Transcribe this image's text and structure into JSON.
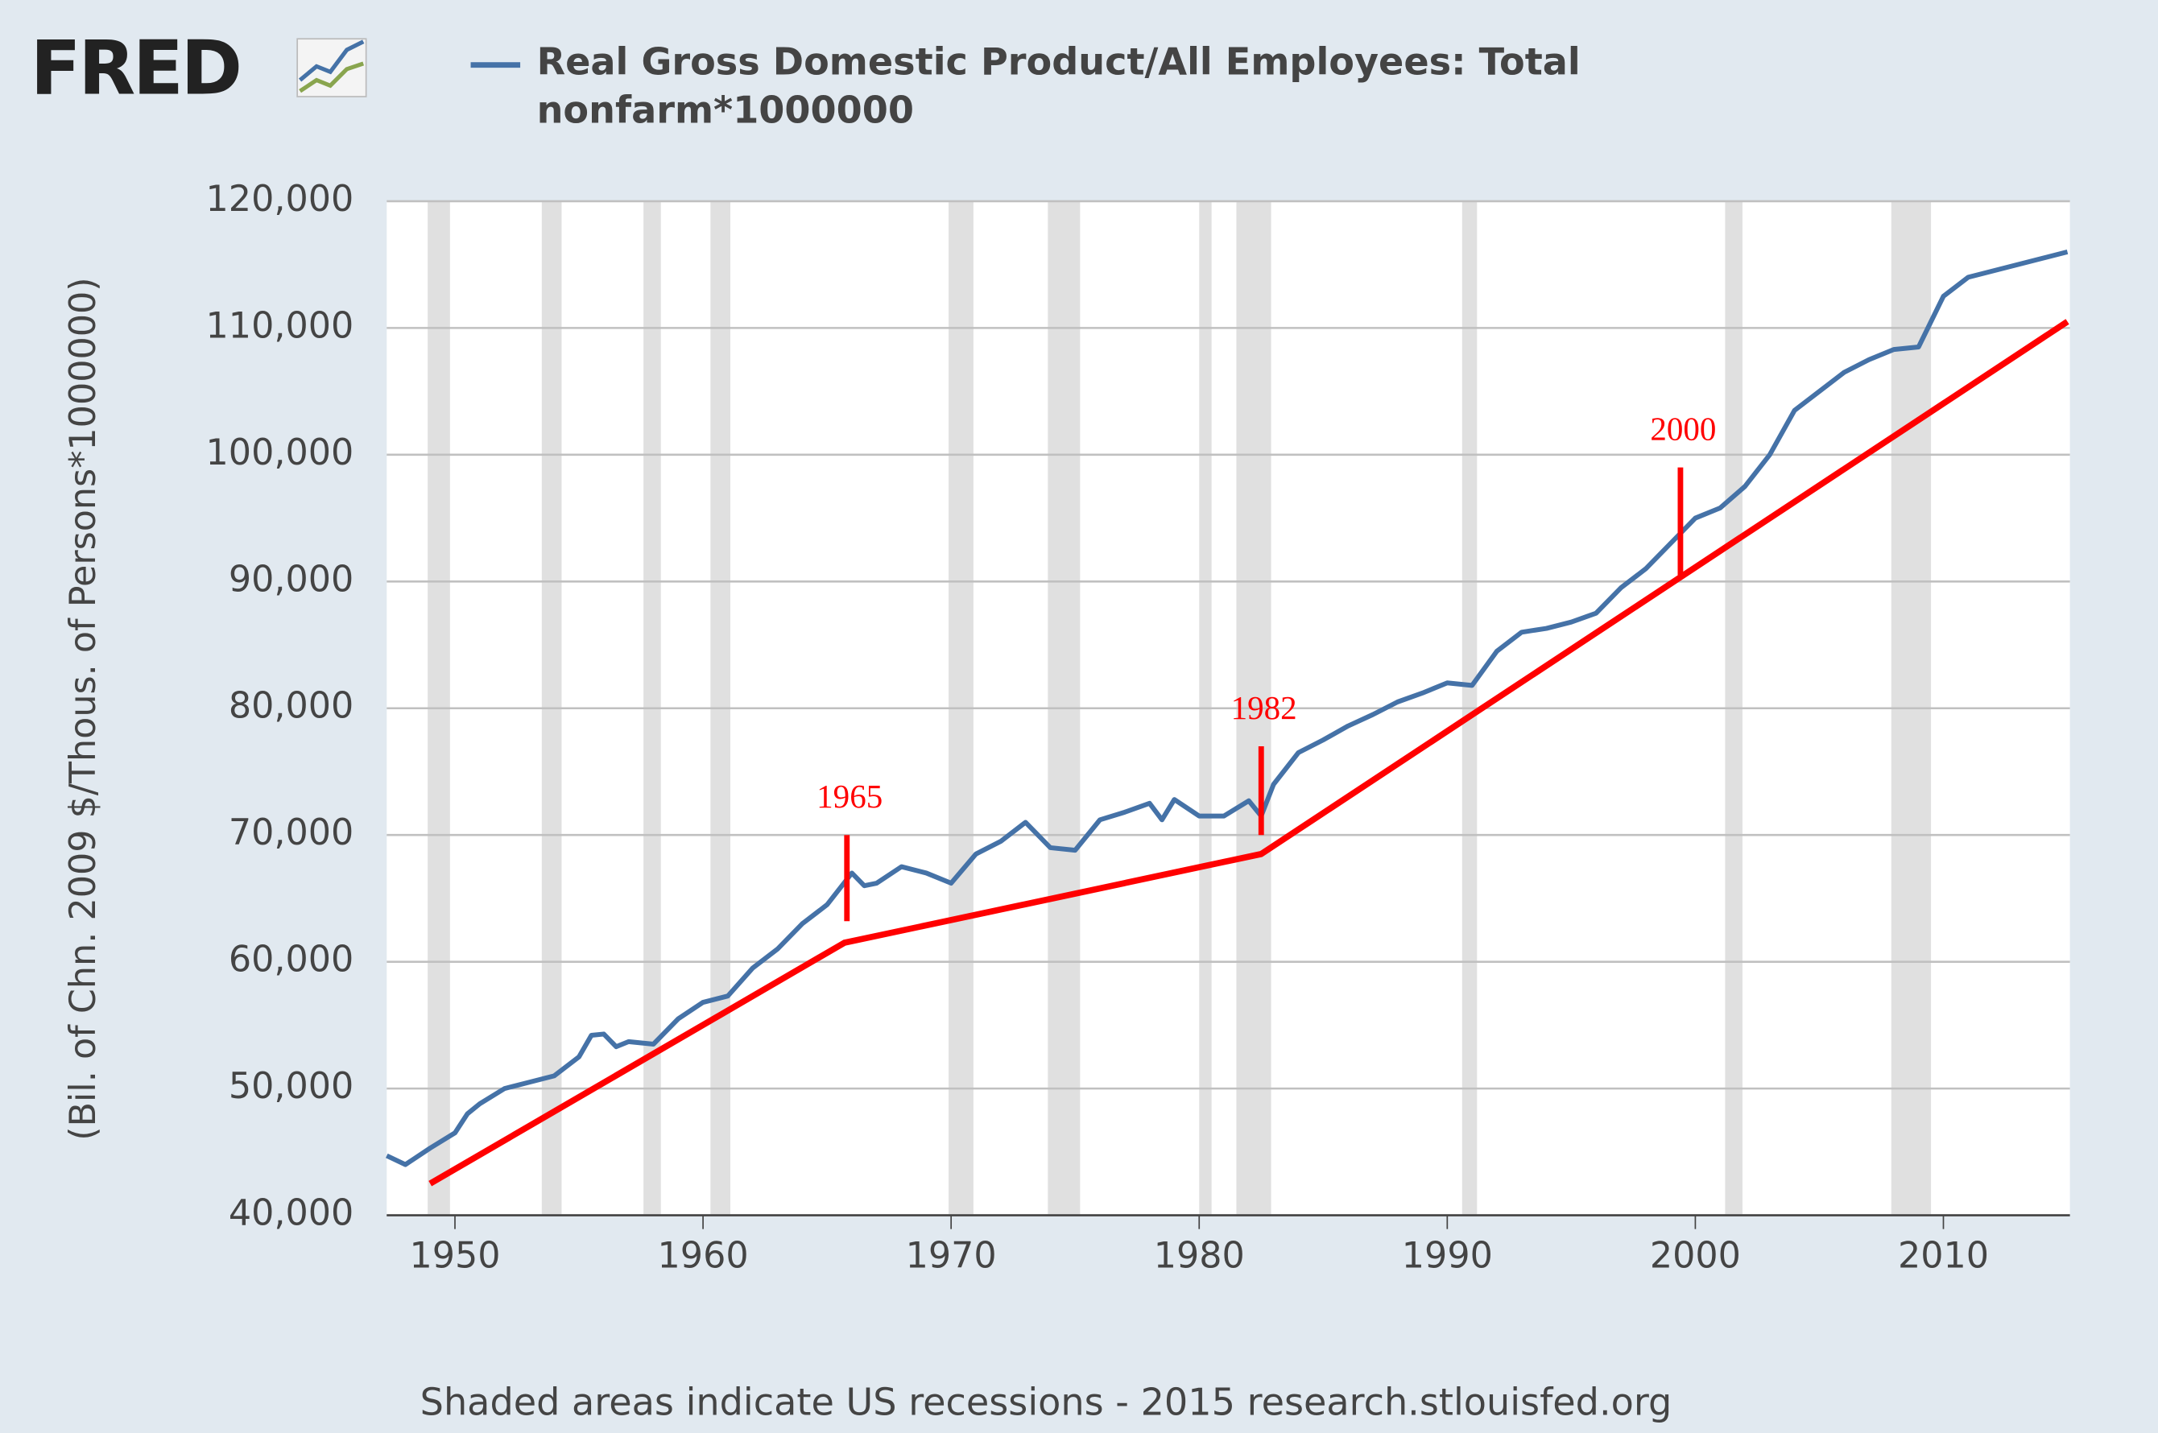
{
  "chart_data": {
    "type": "line",
    "logo": "FRED",
    "title": "Real Gross Domestic Product/All Employees: Total nonfarm*1000000",
    "y_label": "(Bil. of Chn. 2009 $/Thous. of Persons*1000000)",
    "footer": "Shaded areas indicate US recessions - 2015 research.stlouisfed.org",
    "xlim": [
      1947.25,
      2015.1
    ],
    "xticks": [
      1950,
      1960,
      1970,
      1980,
      1990,
      2000,
      2010
    ],
    "ylim": [
      40000,
      120000
    ],
    "yticks": [
      {
        "value": 40000,
        "label": "40,000"
      },
      {
        "value": 50000,
        "label": "50,000"
      },
      {
        "value": 60000,
        "label": "60,000"
      },
      {
        "value": 70000,
        "label": "70,000"
      },
      {
        "value": 80000,
        "label": "80,000"
      },
      {
        "value": 90000,
        "label": "90,000"
      },
      {
        "value": 100000,
        "label": "100,000"
      },
      {
        "value": 110000,
        "label": "110,000"
      },
      {
        "value": 120000,
        "label": "120,000"
      }
    ],
    "grid": true,
    "recessions": [
      [
        1948.9,
        1949.8
      ],
      [
        1953.5,
        1954.3
      ],
      [
        1957.6,
        1958.3
      ],
      [
        1960.3,
        1961.1
      ],
      [
        1969.9,
        1970.9
      ],
      [
        1973.9,
        1975.2
      ],
      [
        1980.0,
        1980.5
      ],
      [
        1981.5,
        1982.9
      ],
      [
        1990.6,
        1991.2
      ],
      [
        2001.2,
        2001.9
      ],
      [
        2007.9,
        2009.5
      ]
    ],
    "recession_color": "#e0e0e0",
    "series": [
      {
        "name": "Real Gross Domestic Product/All Employees: Total nonfarm*1000000",
        "color": "#4572a7",
        "x": [
          1947.25,
          1948,
          1949,
          1950,
          1950.5,
          1951,
          1952,
          1953,
          1954,
          1955,
          1955.5,
          1956,
          1956.5,
          1957,
          1958,
          1959,
          1960,
          1961,
          1962,
          1963,
          1964,
          1965,
          1966,
          1966.5,
          1967,
          1968,
          1969,
          1970,
          1971,
          1972,
          1973,
          1974,
          1975,
          1976,
          1977,
          1978,
          1978.5,
          1979,
          1980,
          1981,
          1982,
          1982.5,
          1983,
          1984,
          1985,
          1986,
          1987,
          1988,
          1989,
          1990,
          1991,
          1992,
          1993,
          1994,
          1995,
          1996,
          1997,
          1998,
          1999,
          2000,
          2001,
          2002,
          2003,
          2004,
          2005,
          2006,
          2007,
          2008,
          2009,
          2010,
          2011,
          2012,
          2013,
          2014,
          2015
        ],
        "values": [
          44700,
          44000,
          45300,
          46500,
          48000,
          48800,
          50000,
          50500,
          51000,
          52500,
          54200,
          54300,
          53300,
          53700,
          53500,
          55500,
          56800,
          57300,
          59500,
          61000,
          63000,
          64500,
          67000,
          66000,
          66200,
          67500,
          67000,
          66200,
          68500,
          69500,
          71000,
          69000,
          68800,
          71200,
          71800,
          72500,
          71200,
          72800,
          71500,
          71500,
          72700,
          71500,
          74000,
          76500,
          77500,
          78600,
          79500,
          80500,
          81200,
          82000,
          81800,
          84500,
          86000,
          86300,
          86800,
          87500,
          89500,
          91000,
          93000,
          95000,
          95800,
          97500,
          100000,
          103500,
          105000,
          106500,
          107500,
          108300,
          108500,
          112500,
          114000,
          114500,
          115000,
          115500,
          116000
        ]
      }
    ],
    "trend": {
      "color": "#ff0000",
      "x": [
        1949,
        1965.7,
        1982.5,
        2015
      ],
      "values": [
        42500,
        61500,
        68500,
        110500
      ]
    },
    "annotations": [
      {
        "text": "1965",
        "x": 1965.8,
        "values": [
          70000,
          63200
        ]
      },
      {
        "text": "1982",
        "x": 1982.5,
        "values": [
          77000,
          70000
        ]
      },
      {
        "text": "2000",
        "x": 1999.4,
        "values": [
          99000,
          90500
        ]
      }
    ]
  }
}
